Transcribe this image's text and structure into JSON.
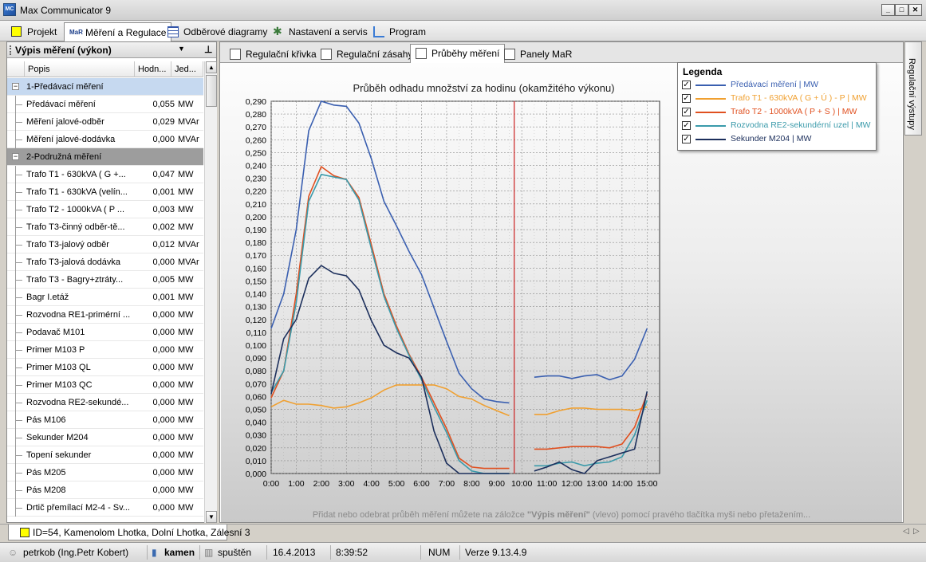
{
  "app": {
    "title": "Max Communicator 9",
    "icon_text": "MC"
  },
  "window_buttons": {
    "minimize": "_",
    "maximize": "□",
    "close": "✕"
  },
  "menu_tabs": [
    {
      "label": "Projekt",
      "icon": "yellow-square-icon"
    },
    {
      "label": "Měření a Regulace",
      "icon": "mar-icon",
      "active": true
    },
    {
      "label": "Odběrové diagramy",
      "icon": "grid-icon"
    },
    {
      "label": "Nastavení a servis",
      "icon": "tools-icon"
    },
    {
      "label": "Program",
      "icon": "chart-icon"
    }
  ],
  "left_panel": {
    "title": "Výpis měření (výkon)",
    "columns": {
      "name": "Popis",
      "value": "Hodn...",
      "unit": "Jed..."
    },
    "rows": [
      {
        "type": "group",
        "name": "1-Předávací měření"
      },
      {
        "name": "Předávací měření",
        "value": "0,055",
        "unit": "MW"
      },
      {
        "name": "Měření jalové-odběr",
        "value": "0,029",
        "unit": "MVAr"
      },
      {
        "name": "Měření jalové-dodávka",
        "value": "0,000",
        "unit": "MVAr"
      },
      {
        "type": "group",
        "name": "2-Podružná měření"
      },
      {
        "name": "Trafo T1 - 630kVA ( G +...",
        "value": "0,047",
        "unit": "MW"
      },
      {
        "name": "Trafo T1 - 630kVA (velín...",
        "value": "0,001",
        "unit": "MW"
      },
      {
        "name": "Trafo T2 - 1000kVA ( P ...",
        "value": "0,003",
        "unit": "MW"
      },
      {
        "name": "Trafo T3-činný odběr-tě...",
        "value": "0,002",
        "unit": "MW"
      },
      {
        "name": "Trafo T3-jalový odběr",
        "value": "0,012",
        "unit": "MVAr"
      },
      {
        "name": "Trafo T3-jalová dodávka",
        "value": "0,000",
        "unit": "MVAr"
      },
      {
        "name": "Trafo T3 - Bagry+ztráty...",
        "value": "0,005",
        "unit": "MW"
      },
      {
        "name": "Bagr I.etáž",
        "value": "0,001",
        "unit": "MW"
      },
      {
        "name": "Rozvodna RE1-primérní ...",
        "value": "0,000",
        "unit": "MW"
      },
      {
        "name": "Podavač M101",
        "value": "0,000",
        "unit": "MW"
      },
      {
        "name": "Primer M103 P",
        "value": "0,000",
        "unit": "MW"
      },
      {
        "name": "Primer M103 QL",
        "value": "0,000",
        "unit": "MW"
      },
      {
        "name": "Primer M103 QC",
        "value": "0,000",
        "unit": "MW"
      },
      {
        "name": "Rozvodna RE2-sekundé...",
        "value": "0,000",
        "unit": "MW"
      },
      {
        "name": "Pás M106",
        "value": "0,000",
        "unit": "MW"
      },
      {
        "name": "Sekunder M204",
        "value": "0,000",
        "unit": "MW"
      },
      {
        "name": "Topení sekunder",
        "value": "0,000",
        "unit": "MW"
      },
      {
        "name": "Pás M205",
        "value": "0,000",
        "unit": "MW"
      },
      {
        "name": "Pás M208",
        "value": "0,000",
        "unit": "MW"
      },
      {
        "name": "Drtič přemílací M2-4 - Sv...",
        "value": "0,000",
        "unit": "MW"
      }
    ]
  },
  "sub_tabs": [
    {
      "label": "Regulační křivka"
    },
    {
      "label": "Regulační zásahy"
    },
    {
      "label": "Průběhy měření",
      "active": true
    },
    {
      "label": "Panely MaR"
    }
  ],
  "side_tab": {
    "label": "Regulační výstupy"
  },
  "hint": {
    "before": "Přidat nebo odebrat průběh měření můžete na záložce ",
    "bold": "\"Výpis měření\"",
    "after": " (vlevo) pomocí pravého tlačítka myši nebo přetažením..."
  },
  "legend": {
    "title": "Legenda",
    "check": "✓"
  },
  "chart_data": {
    "type": "line",
    "title": "Průběh odhadu množství za hodinu (okamžitého výkonu)",
    "xlabel": "",
    "ylabel": "",
    "ylim": [
      0,
      0.29
    ],
    "y_ticks": [
      "0,000",
      "0,010",
      "0,020",
      "0,030",
      "0,040",
      "0,050",
      "0,060",
      "0,070",
      "0,080",
      "0,090",
      "0,100",
      "0,110",
      "0,120",
      "0,130",
      "0,140",
      "0,150",
      "0,160",
      "0,170",
      "0,180",
      "0,190",
      "0,200",
      "0,210",
      "0,220",
      "0,230",
      "0,240",
      "0,250",
      "0,260",
      "0,270",
      "0,280",
      "0,290"
    ],
    "x_ticks": [
      "0:00",
      "1:00",
      "2:00",
      "3:00",
      "4:00",
      "5:00",
      "6:00",
      "7:00",
      "8:00",
      "9:00",
      "10:00",
      "11:00",
      "12:00",
      "13:00",
      "14:00",
      "15:00"
    ],
    "xlim": [
      0,
      15.5
    ],
    "grid": true,
    "current_time_marker": 9.7,
    "series": [
      {
        "name": "Předávací měření | MW",
        "color": "#3a5fb0",
        "segments": [
          [
            [
              0,
              0.113
            ],
            [
              0.5,
              0.14
            ],
            [
              1,
              0.19
            ],
            [
              1.5,
              0.267
            ],
            [
              2,
              0.29
            ],
            [
              2.5,
              0.287
            ],
            [
              3,
              0.286
            ],
            [
              3.5,
              0.273
            ],
            [
              4,
              0.245
            ],
            [
              4.5,
              0.212
            ],
            [
              5,
              0.193
            ],
            [
              5.5,
              0.173
            ],
            [
              6,
              0.155
            ],
            [
              6.5,
              0.129
            ],
            [
              7,
              0.103
            ],
            [
              7.5,
              0.078
            ],
            [
              8,
              0.066
            ],
            [
              8.5,
              0.058
            ],
            [
              9,
              0.056
            ],
            [
              9.5,
              0.055
            ]
          ],
          [
            [
              10.5,
              0.075
            ],
            [
              11,
              0.076
            ],
            [
              11.5,
              0.076
            ],
            [
              12,
              0.074
            ],
            [
              12.5,
              0.076
            ],
            [
              13,
              0.077
            ],
            [
              13.5,
              0.073
            ],
            [
              14,
              0.076
            ],
            [
              14.5,
              0.089
            ],
            [
              15,
              0.113
            ]
          ]
        ]
      },
      {
        "name": "Trafo T1 - 630kVA ( G + Ú ) - P | MW",
        "color": "#f0a030",
        "segments": [
          [
            [
              0,
              0.052
            ],
            [
              0.5,
              0.057
            ],
            [
              1,
              0.054
            ],
            [
              1.5,
              0.054
            ],
            [
              2,
              0.053
            ],
            [
              2.5,
              0.051
            ],
            [
              3,
              0.052
            ],
            [
              3.5,
              0.055
            ],
            [
              4,
              0.059
            ],
            [
              4.5,
              0.065
            ],
            [
              5,
              0.069
            ],
            [
              5.5,
              0.069
            ],
            [
              6,
              0.069
            ],
            [
              6.5,
              0.069
            ],
            [
              7,
              0.066
            ],
            [
              7.5,
              0.06
            ],
            [
              8,
              0.058
            ],
            [
              8.5,
              0.053
            ],
            [
              9,
              0.049
            ],
            [
              9.5,
              0.045
            ]
          ],
          [
            [
              10.5,
              0.046
            ],
            [
              11,
              0.046
            ],
            [
              11.5,
              0.049
            ],
            [
              12,
              0.051
            ],
            [
              12.5,
              0.051
            ],
            [
              13,
              0.05
            ],
            [
              13.5,
              0.05
            ],
            [
              14,
              0.05
            ],
            [
              14.5,
              0.049
            ],
            [
              15,
              0.052
            ]
          ]
        ]
      },
      {
        "name": "Trafo T2 - 1000kVA ( P + S ) | MW",
        "color": "#e05020",
        "segments": [
          [
            [
              0,
              0.059
            ],
            [
              0.5,
              0.08
            ],
            [
              1,
              0.14
            ],
            [
              1.5,
              0.216
            ],
            [
              2,
              0.239
            ],
            [
              2.5,
              0.232
            ],
            [
              3,
              0.229
            ],
            [
              3.5,
              0.215
            ],
            [
              4,
              0.178
            ],
            [
              4.5,
              0.14
            ],
            [
              5,
              0.115
            ],
            [
              5.5,
              0.093
            ],
            [
              6,
              0.075
            ],
            [
              6.5,
              0.055
            ],
            [
              7,
              0.035
            ],
            [
              7.5,
              0.012
            ],
            [
              8,
              0.005
            ],
            [
              8.5,
              0.004
            ],
            [
              9,
              0.004
            ],
            [
              9.5,
              0.004
            ]
          ],
          [
            [
              10.5,
              0.019
            ],
            [
              11,
              0.019
            ],
            [
              11.5,
              0.02
            ],
            [
              12,
              0.021
            ],
            [
              12.5,
              0.021
            ],
            [
              13,
              0.021
            ],
            [
              13.5,
              0.02
            ],
            [
              14,
              0.023
            ],
            [
              14.5,
              0.036
            ],
            [
              15,
              0.062
            ]
          ]
        ]
      },
      {
        "name": "Rozvodna RE2-sekundérní uzel | MW",
        "color": "#3a9aaa",
        "segments": [
          [
            [
              0,
              0.063
            ],
            [
              0.5,
              0.08
            ],
            [
              1,
              0.133
            ],
            [
              1.5,
              0.212
            ],
            [
              2,
              0.233
            ],
            [
              2.5,
              0.231
            ],
            [
              3,
              0.229
            ],
            [
              3.5,
              0.213
            ],
            [
              4,
              0.175
            ],
            [
              4.5,
              0.138
            ],
            [
              5,
              0.113
            ],
            [
              5.5,
              0.092
            ],
            [
              6,
              0.073
            ],
            [
              6.5,
              0.052
            ],
            [
              7,
              0.032
            ],
            [
              7.5,
              0.01
            ],
            [
              8,
              0.002
            ],
            [
              8.5,
              0.0
            ],
            [
              9,
              0.0
            ],
            [
              9.5,
              0.0
            ]
          ],
          [
            [
              10.5,
              0.006
            ],
            [
              11,
              0.006
            ],
            [
              11.5,
              0.008
            ],
            [
              12,
              0.009
            ],
            [
              12.5,
              0.006
            ],
            [
              13,
              0.008
            ],
            [
              13.5,
              0.009
            ],
            [
              14,
              0.013
            ],
            [
              14.5,
              0.03
            ],
            [
              15,
              0.057
            ]
          ]
        ]
      },
      {
        "name": "Sekunder M204 | MW",
        "color": "#1c2f5c",
        "segments": [
          [
            [
              0,
              0.062
            ],
            [
              0.5,
              0.105
            ],
            [
              1,
              0.12
            ],
            [
              1.5,
              0.152
            ],
            [
              2,
              0.162
            ],
            [
              2.5,
              0.156
            ],
            [
              3,
              0.154
            ],
            [
              3.5,
              0.143
            ],
            [
              4,
              0.119
            ],
            [
              4.5,
              0.1
            ],
            [
              5,
              0.094
            ],
            [
              5.5,
              0.09
            ],
            [
              6,
              0.075
            ],
            [
              6.5,
              0.033
            ],
            [
              7,
              0.008
            ],
            [
              7.5,
              0.0
            ],
            [
              8,
              0.0
            ],
            [
              8.5,
              0.0
            ],
            [
              9,
              0.0
            ],
            [
              9.5,
              0.0
            ]
          ],
          [
            [
              10.5,
              0.002
            ],
            [
              11,
              0.005
            ],
            [
              11.5,
              0.009
            ],
            [
              12,
              0.003
            ],
            [
              12.5,
              0.0
            ],
            [
              13,
              0.01
            ],
            [
              13.5,
              0.013
            ],
            [
              14,
              0.016
            ],
            [
              14.5,
              0.019
            ],
            [
              15,
              0.064
            ]
          ]
        ]
      }
    ]
  },
  "project_tab": {
    "label": "ID=54, Kamenolom Lhotka, Dolní Lhotka, Zálesní 3"
  },
  "status": {
    "user": "petrkob (Ing.Petr Kobert)",
    "server": "kamen",
    "state": "spuštěn",
    "date": "16.4.2013",
    "time": "8:39:52",
    "num": "NUM",
    "version": "Verze 9.13.4.9"
  }
}
